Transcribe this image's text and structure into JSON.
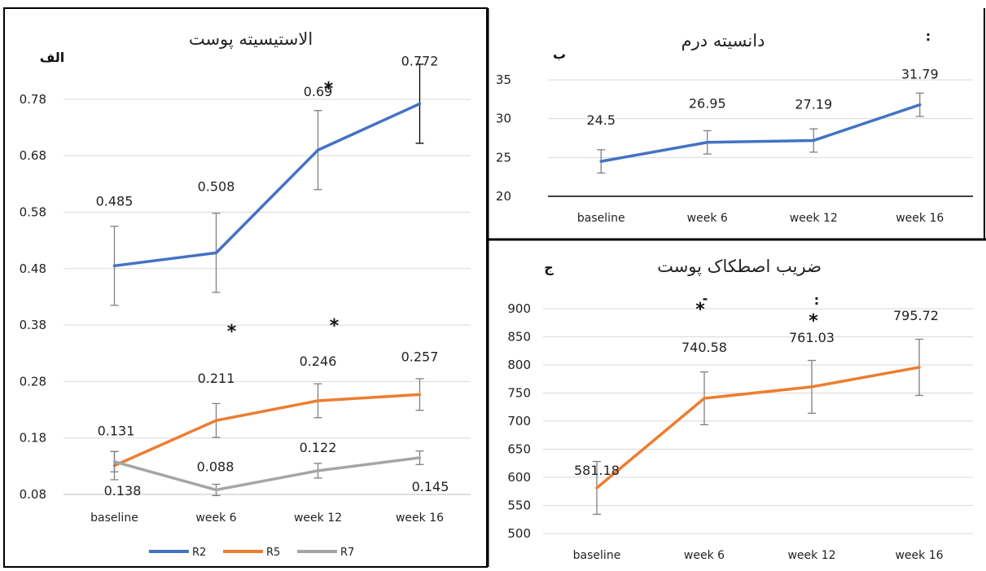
{
  "chart_data": [
    {
      "type": "line",
      "title": "الاستیسیته پوست",
      "panel_label": "الف",
      "categories": [
        "baseline",
        "week 6",
        "week 12",
        "week 16"
      ],
      "yticks": [
        "0.08",
        "0.18",
        "0.28",
        "0.38",
        "0.48",
        "0.58",
        "0.68",
        "0.78"
      ],
      "ylim": [
        0.08,
        0.8
      ],
      "grid": true,
      "legend": "bottom",
      "series": [
        {
          "name": "R2",
          "color": "#4472C4",
          "values": [
            0.485,
            0.508,
            0.69,
            0.772
          ],
          "error": [
            0.07,
            0.07,
            0.07,
            0.07
          ],
          "labels": [
            "0.485",
            "0.508",
            "0.69",
            "0.772"
          ]
        },
        {
          "name": "R5",
          "color": "#ED7D31",
          "values": [
            0.131,
            0.211,
            0.246,
            0.257
          ],
          "error": [
            0.025,
            0.03,
            0.03,
            0.028
          ],
          "labels": [
            "0.131",
            "0.211",
            "0.246",
            "0.257"
          ]
        },
        {
          "name": "R7",
          "color": "#A5A5A5",
          "values": [
            0.138,
            0.088,
            0.122,
            0.145
          ],
          "error": [
            0.018,
            0.01,
            0.013,
            0.012
          ],
          "labels": [
            "0.138",
            "0.088",
            "0.122",
            "0.145"
          ]
        }
      ],
      "stars": [
        {
          "category": "week 12",
          "value": 0.8
        },
        {
          "category": "week 6",
          "value": 0.37
        },
        {
          "category": "week 12",
          "value": 0.38
        }
      ],
      "star_symbol": "*"
    },
    {
      "type": "line",
      "title": "دانسیته درم",
      "panel_label": "ب",
      "corner_mark": ":",
      "categories": [
        "baseline",
        "week 6",
        "week 12",
        "week 16"
      ],
      "yticks": [
        "20",
        "25",
        "30",
        "35"
      ],
      "ylim": [
        20,
        35
      ],
      "grid": true,
      "series": [
        {
          "color": "#4472C4",
          "values": [
            24.5,
            26.95,
            27.19,
            31.79
          ],
          "error": [
            1.5,
            1.5,
            1.5,
            1.5
          ],
          "labels": [
            "24.5",
            "26.95",
            "27.19",
            "31.79"
          ]
        }
      ]
    },
    {
      "type": "line",
      "title": "ضریب اصطکاک پوست",
      "panel_label": "ج",
      "categories": [
        "baseline",
        "week 6",
        "week 12",
        "week 16"
      ],
      "yticks": [
        "500",
        "550",
        "600",
        "650",
        "700",
        "750",
        "800",
        "850",
        "900"
      ],
      "ylim": [
        500,
        900
      ],
      "grid": true,
      "series": [
        {
          "color": "#ED7D31",
          "values": [
            581.18,
            740.58,
            761.03,
            795.72
          ],
          "error": [
            47,
            47,
            47,
            50
          ],
          "labels": [
            "581.18",
            "740.58",
            "761.03",
            "795.72"
          ]
        }
      ],
      "stars": [
        {
          "category": "week 6",
          "value": 900
        },
        {
          "category": "week 12",
          "value": 880
        }
      ],
      "star_symbol": "*",
      "minor_marks": [
        ":",
        "-"
      ]
    }
  ]
}
